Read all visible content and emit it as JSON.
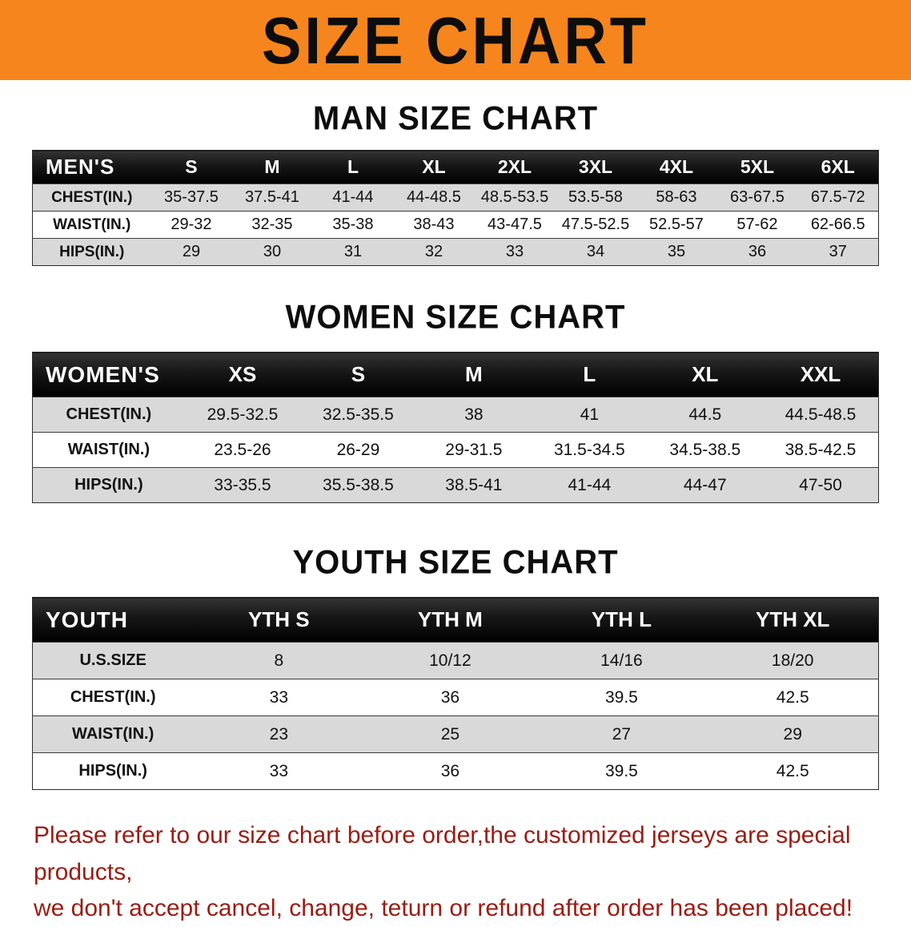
{
  "banner": {
    "title": "SIZE CHART"
  },
  "colors": {
    "banner_bg": "#f6851d",
    "table_header_bg": "#161616",
    "stripe": "#d9d9d9",
    "notice_text": "#9b1c12"
  },
  "chart_data": [
    {
      "type": "table",
      "title": "MAN SIZE CHART",
      "columns": [
        "MEN'S",
        "S",
        "M",
        "L",
        "XL",
        "2XL",
        "3XL",
        "4XL",
        "5XL",
        "6XL"
      ],
      "rows": [
        [
          "CHEST(IN.)",
          "35-37.5",
          "37.5-41",
          "41-44",
          "44-48.5",
          "48.5-53.5",
          "53.5-58",
          "58-63",
          "63-67.5",
          "67.5-72"
        ],
        [
          "WAIST(IN.)",
          "29-32",
          "32-35",
          "35-38",
          "38-43",
          "43-47.5",
          "47.5-52.5",
          "52.5-57",
          "57-62",
          "62-66.5"
        ],
        [
          "HIPS(IN.)",
          "29",
          "30",
          "31",
          "32",
          "33",
          "34",
          "35",
          "36",
          "37"
        ]
      ]
    },
    {
      "type": "table",
      "title": "WOMEN SIZE CHART",
      "columns": [
        "WOMEN'S",
        "XS",
        "S",
        "M",
        "L",
        "XL",
        "XXL"
      ],
      "rows": [
        [
          "CHEST(IN.)",
          "29.5-32.5",
          "32.5-35.5",
          "38",
          "41",
          "44.5",
          "44.5-48.5"
        ],
        [
          "WAIST(IN.)",
          "23.5-26",
          "26-29",
          "29-31.5",
          "31.5-34.5",
          "34.5-38.5",
          "38.5-42.5"
        ],
        [
          "HIPS(IN.)",
          "33-35.5",
          "35.5-38.5",
          "38.5-41",
          "41-44",
          "44-47",
          "47-50"
        ]
      ]
    },
    {
      "type": "table",
      "title": "YOUTH SIZE CHART",
      "columns": [
        "YOUTH",
        "YTH S",
        "YTH M",
        "YTH L",
        "YTH XL"
      ],
      "rows": [
        [
          "U.S.SIZE",
          "8",
          "10/12",
          "14/16",
          "18/20"
        ],
        [
          "CHEST(IN.)",
          "33",
          "36",
          "39.5",
          "42.5"
        ],
        [
          "WAIST(IN.)",
          "23",
          "25",
          "27",
          "29"
        ],
        [
          "HIPS(IN.)",
          "33",
          "36",
          "39.5",
          "42.5"
        ]
      ]
    }
  ],
  "footer": {
    "lines": [
      "Please refer to our size chart before order,the customized jerseys are special products,",
      "we don't accept cancel, change, teturn or refund after order has been placed!"
    ]
  }
}
